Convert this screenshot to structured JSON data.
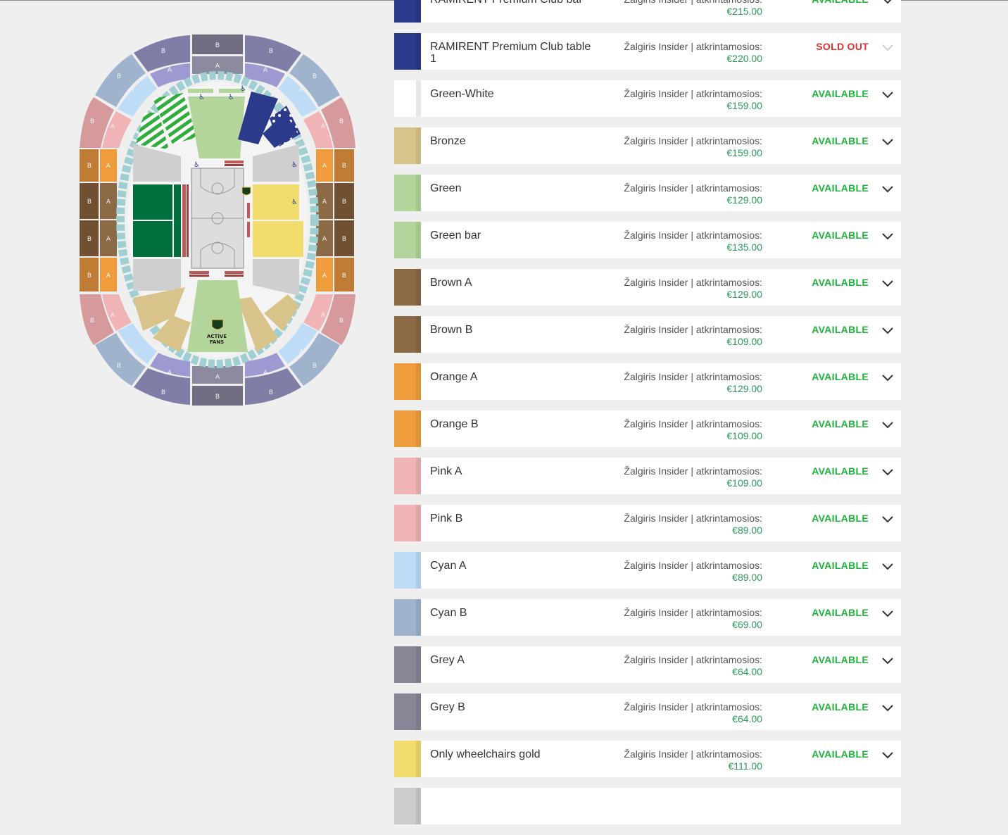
{
  "seat_map": {
    "sector_letters": {
      "a": "A",
      "b": "B"
    },
    "active_fans_lines": [
      "ACTIVE",
      "FANS"
    ]
  },
  "colors": {
    "available": "#1db33a",
    "sold_out": "#e03030",
    "price": "#2a9a5a"
  },
  "ticket_rows": [
    {
      "name": "RAMIRENT Premium Club bar",
      "provider": "Žalgiris Insider | atkrintamosios:",
      "price": "€215.00",
      "status": "AVAILABLE",
      "swatch": "#2b3a8a",
      "available": true
    },
    {
      "name": "RAMIRENT Premium Club table 1",
      "provider": "Žalgiris Insider | atkrintamosios:",
      "price": "€220.00",
      "status": "SOLD OUT",
      "swatch": "#2b3a8a",
      "available": false
    },
    {
      "name": "Green-White",
      "provider": "Žalgiris Insider | atkrintamosios:",
      "price": "€159.00",
      "status": "AVAILABLE",
      "swatch": "#ffffff",
      "available": true
    },
    {
      "name": "Bronze",
      "provider": "Žalgiris Insider | atkrintamosios:",
      "price": "€159.00",
      "status": "AVAILABLE",
      "swatch": "#d8c48a",
      "available": true
    },
    {
      "name": "Green",
      "provider": "Žalgiris Insider | atkrintamosios:",
      "price": "€129.00",
      "status": "AVAILABLE",
      "swatch": "#b3d49a",
      "available": true
    },
    {
      "name": "Green bar",
      "provider": "Žalgiris Insider | atkrintamosios:",
      "price": "€135.00",
      "status": "AVAILABLE",
      "swatch": "#b3d49a",
      "available": true
    },
    {
      "name": "Brown A",
      "provider": "Žalgiris Insider | atkrintamosios:",
      "price": "€129.00",
      "status": "AVAILABLE",
      "swatch": "#8b6a45",
      "available": true
    },
    {
      "name": "Brown B",
      "provider": "Žalgiris Insider | atkrintamosios:",
      "price": "€109.00",
      "status": "AVAILABLE",
      "swatch": "#8b6a45",
      "available": true
    },
    {
      "name": "Orange A",
      "provider": "Žalgiris Insider | atkrintamosios:",
      "price": "€129.00",
      "status": "AVAILABLE",
      "swatch": "#ef9d3c",
      "available": true
    },
    {
      "name": "Orange B",
      "provider": "Žalgiris Insider | atkrintamosios:",
      "price": "€109.00",
      "status": "AVAILABLE",
      "swatch": "#ef9d3c",
      "available": true
    },
    {
      "name": "Pink A",
      "provider": "Žalgiris Insider | atkrintamosios:",
      "price": "€109.00",
      "status": "AVAILABLE",
      "swatch": "#f0b3b6",
      "available": true
    },
    {
      "name": "Pink B",
      "provider": "Žalgiris Insider | atkrintamosios:",
      "price": "€89.00",
      "status": "AVAILABLE",
      "swatch": "#f0b3b6",
      "available": true
    },
    {
      "name": "Cyan A",
      "provider": "Žalgiris Insider | atkrintamosios:",
      "price": "€89.00",
      "status": "AVAILABLE",
      "swatch": "#bfdcf7",
      "available": true
    },
    {
      "name": "Cyan B",
      "provider": "Žalgiris Insider | atkrintamosios:",
      "price": "€69.00",
      "status": "AVAILABLE",
      "swatch": "#9fb4cc",
      "available": true
    },
    {
      "name": "Grey A",
      "provider": "Žalgiris Insider | atkrintamosios:",
      "price": "€64.00",
      "status": "AVAILABLE",
      "swatch": "#878596",
      "available": true
    },
    {
      "name": "Grey B",
      "provider": "Žalgiris Insider | atkrintamosios:",
      "price": "€64.00",
      "status": "AVAILABLE",
      "swatch": "#878596",
      "available": true
    },
    {
      "name": "Only wheelchairs gold",
      "provider": "Žalgiris Insider | atkrintamosios:",
      "price": "€111.00",
      "status": "AVAILABLE",
      "swatch": "#f2dc6e",
      "available": true
    },
    {
      "name": "",
      "provider": "",
      "price": "",
      "status": "",
      "swatch": "#cccccc",
      "available": true
    }
  ]
}
